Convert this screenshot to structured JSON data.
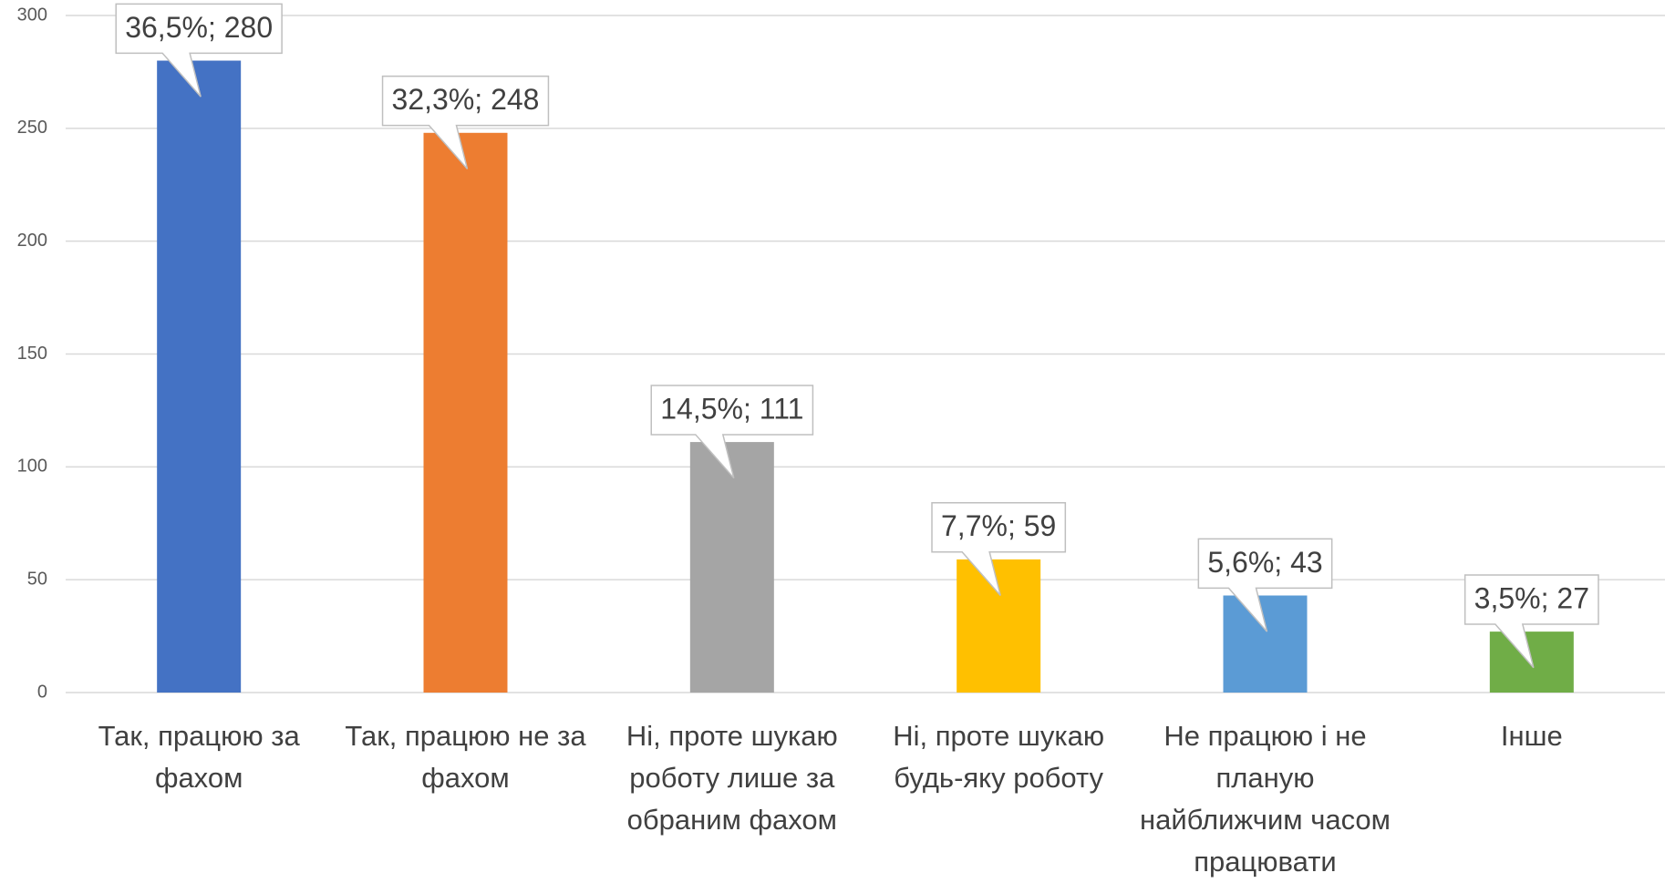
{
  "chart_data": {
    "type": "bar",
    "categories": [
      "Так, працюю за фахом",
      "Так, працюю не за фахом",
      "Ні, проте шукаю роботу лише за обраним фахом",
      "Ні, проте шукаю будь-яку роботу",
      "Не працюю і не планую найближчим часом працювати",
      "Інше"
    ],
    "values": [
      280,
      248,
      111,
      59,
      43,
      27
    ],
    "value_labels": [
      "36,5%; 280",
      "32,3%; 248",
      "14,5%; 111",
      "7,7%; 59",
      "5,6%; 43",
      "3,5%; 27"
    ],
    "colors": [
      "#4472c4",
      "#ed7d31",
      "#a5a5a5",
      "#ffc000",
      "#5b9bd5",
      "#70ad47"
    ],
    "ylim": [
      0,
      300
    ],
    "yticks": [
      0,
      50,
      100,
      150,
      200,
      250,
      300
    ],
    "grid": true
  }
}
